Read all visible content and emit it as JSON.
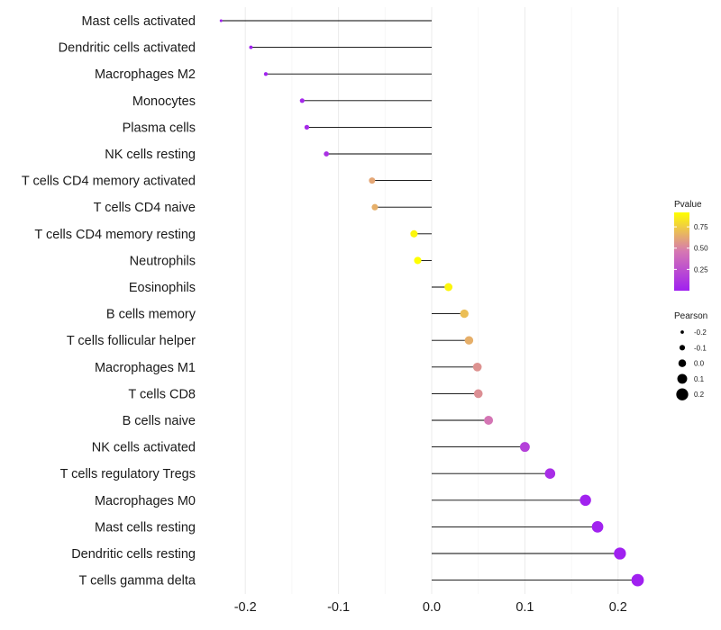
{
  "chart_data": {
    "type": "lollipop",
    "title": "",
    "xlabel": "",
    "ylabel": "",
    "xlim": [
      -0.24,
      0.235
    ],
    "xticks": [
      -0.2,
      -0.1,
      0.0,
      0.1,
      0.2
    ],
    "xtick_labels": [
      "-0.2",
      "-0.1",
      "0.0",
      "0.1",
      "0.2"
    ],
    "grid": true,
    "categories": [
      "Mast cells activated",
      "Dendritic cells activated",
      "Macrophages M2",
      "Monocytes",
      "Plasma cells",
      "NK cells resting",
      "T cells CD4 memory activated",
      "T cells CD4 naive",
      "T cells CD4 memory resting",
      "Neutrophils",
      "Eosinophils",
      "B cells memory",
      "T cells follicular helper",
      "Macrophages M1",
      "T cells CD8",
      "B cells naive",
      "NK cells activated",
      "T cells regulatory  Tregs",
      "Macrophages M0",
      "Mast cells resting",
      "Dendritic cells resting",
      "T cells gamma delta"
    ],
    "pearson": [
      -0.226,
      -0.194,
      -0.178,
      -0.139,
      -0.134,
      -0.113,
      -0.064,
      -0.061,
      -0.019,
      -0.015,
      0.018,
      0.035,
      0.04,
      0.049,
      0.05,
      0.061,
      0.1,
      0.127,
      0.165,
      0.178,
      0.202,
      0.221
    ],
    "pvalue": [
      0.001,
      0.004,
      0.01,
      0.04,
      0.05,
      0.09,
      0.62,
      0.65,
      0.89,
      0.92,
      0.89,
      0.7,
      0.65,
      0.55,
      0.54,
      0.45,
      0.17,
      0.07,
      0.01,
      0.008,
      0.003,
      0.001
    ],
    "legends": {
      "color": {
        "title": "Pvalue",
        "ticks": [
          0.25,
          0.5,
          0.75
        ],
        "tick_labels": [
          "0.25",
          "0.50",
          "0.75"
        ],
        "range": [
          0.0,
          0.92
        ],
        "low_color": "#a020f0",
        "mid_color": "#d577b3",
        "high_color": "#ffff00",
        "placement": "right"
      },
      "size": {
        "title": "Pearson",
        "values": [
          -0.2,
          -0.1,
          0.0,
          0.1,
          0.2
        ],
        "labels": [
          "-0.2",
          "-0.1",
          "0.0",
          "0.1",
          "0.2"
        ],
        "placement": "right"
      }
    }
  }
}
